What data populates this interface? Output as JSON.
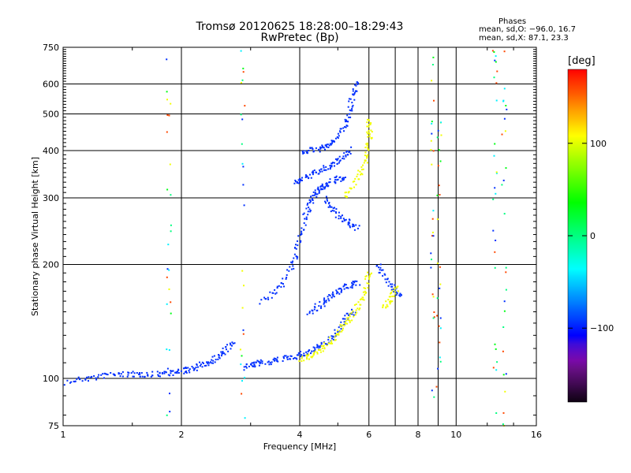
{
  "title_line1": "Tromsø 20120625 18:28:00–18:29:43",
  "title_line2": "RwPretec (Bp)",
  "phases_box": {
    "title": "Phases",
    "line_o": "mean, sd,O: −96.0, 16.7",
    "line_x": "mean, sd,X:  87.1, 23.3"
  },
  "colorbar": {
    "unit": "[deg]",
    "range": [
      -180,
      180
    ],
    "ticks": [
      "100",
      "0",
      "−100"
    ],
    "tick_values": [
      100,
      0,
      -100
    ]
  },
  "chart_data": {
    "type": "scatter",
    "xlabel": "Frequency [MHz]",
    "ylabel": "Stationary phase Virtual Height [km]",
    "xscale": "log",
    "yscale": "log",
    "xlim": [
      1,
      16
    ],
    "ylim": [
      75,
      750
    ],
    "xticks": [
      1,
      2,
      4,
      6,
      8,
      10,
      16
    ],
    "xtick_labels": [
      "1",
      "2",
      "4",
      "6",
      "8",
      "10",
      "16"
    ],
    "yticks": [
      75,
      100,
      200,
      300,
      400,
      500,
      600,
      750
    ],
    "ytick_labels": [
      "75",
      "100",
      "200",
      "300",
      "400",
      "500",
      "600",
      "750"
    ],
    "grid": true,
    "series": [
      {
        "color_value": -95,
        "traces": [
          [
            [
              1.02,
              98
            ],
            [
              1.1,
              100
            ],
            [
              1.2,
              101
            ],
            [
              1.3,
              103
            ],
            [
              1.4,
              103
            ],
            [
              1.5,
              103
            ],
            [
              1.6,
              103
            ],
            [
              1.7,
              103
            ],
            [
              1.8,
              104
            ],
            [
              1.9,
              104
            ],
            [
              2.0,
              105
            ],
            [
              2.1,
              106
            ],
            [
              2.2,
              108
            ],
            [
              2.3,
              110
            ],
            [
              2.4,
              113
            ],
            [
              2.5,
              116
            ],
            [
              2.6,
              120
            ],
            [
              2.7,
              126
            ]
          ],
          [
            [
              2.9,
              108
            ],
            [
              3.0,
              109
            ],
            [
              3.1,
              110
            ],
            [
              3.3,
              111
            ],
            [
              3.5,
              112
            ],
            [
              3.7,
              114
            ],
            [
              3.9,
              115
            ],
            [
              4.1,
              117
            ],
            [
              4.3,
              119
            ],
            [
              4.5,
              122
            ],
            [
              4.7,
              126
            ],
            [
              4.9,
              132
            ],
            [
              5.1,
              140
            ],
            [
              5.3,
              148
            ],
            [
              5.5,
              152
            ]
          ],
          [
            [
              3.2,
              160
            ],
            [
              3.4,
              168
            ],
            [
              3.6,
              180
            ],
            [
              3.8,
              198
            ],
            [
              3.9,
              215
            ],
            [
              4.0,
              240
            ],
            [
              4.1,
              265
            ],
            [
              4.2,
              285
            ],
            [
              4.3,
              300
            ],
            [
              4.4,
              310
            ],
            [
              4.5,
              318
            ],
            [
              4.6,
              325
            ],
            [
              4.8,
              332
            ],
            [
              5.0,
              338
            ],
            [
              5.2,
              342
            ]
          ],
          [
            [
              3.9,
              330
            ],
            [
              4.0,
              335
            ],
            [
              4.2,
              345
            ],
            [
              4.4,
              352
            ],
            [
              4.6,
              360
            ],
            [
              4.8,
              368
            ],
            [
              5.0,
              378
            ],
            [
              5.2,
              390
            ],
            [
              5.4,
              405
            ]
          ],
          [
            [
              4.0,
              400
            ],
            [
              4.2,
              402
            ],
            [
              4.4,
              405
            ],
            [
              4.6,
              410
            ],
            [
              4.8,
              420
            ],
            [
              5.0,
              440
            ],
            [
              5.2,
              470
            ],
            [
              5.3,
              500
            ],
            [
              5.4,
              540
            ],
            [
              5.5,
              580
            ],
            [
              5.55,
              615
            ]
          ],
          [
            [
              4.6,
              300
            ],
            [
              4.8,
              285
            ],
            [
              5.0,
              272
            ],
            [
              5.2,
              262
            ],
            [
              5.4,
              256
            ],
            [
              5.6,
              250
            ]
          ],
          [
            [
              4.2,
              150
            ],
            [
              4.4,
              155
            ],
            [
              4.6,
              160
            ],
            [
              4.8,
              165
            ],
            [
              5.0,
              170
            ],
            [
              5.2,
              175
            ],
            [
              5.4,
              178
            ],
            [
              5.6,
              180
            ]
          ],
          [
            [
              6.3,
              200
            ],
            [
              6.5,
              190
            ],
            [
              6.8,
              178
            ],
            [
              7.0,
              170
            ],
            [
              7.2,
              165
            ]
          ]
        ]
      },
      {
        "color_value": 105,
        "traces": [
          [
            [
              4.0,
              113
            ],
            [
              4.2,
              115
            ],
            [
              4.4,
              118
            ],
            [
              4.6,
              122
            ],
            [
              4.8,
              127
            ],
            [
              5.0,
              133
            ],
            [
              5.2,
              140
            ],
            [
              5.4,
              148
            ],
            [
              5.6,
              156
            ],
            [
              5.8,
              165
            ],
            [
              5.9,
              180
            ],
            [
              6.0,
              195
            ]
          ],
          [
            [
              5.2,
              300
            ],
            [
              5.4,
              320
            ],
            [
              5.6,
              345
            ],
            [
              5.8,
              370
            ],
            [
              5.9,
              400
            ],
            [
              6.0,
              430
            ],
            [
              6.0,
              460
            ],
            [
              5.95,
              490
            ]
          ],
          [
            [
              6.5,
              155
            ],
            [
              6.7,
              160
            ],
            [
              6.9,
              168
            ],
            [
              7.1,
              175
            ]
          ]
        ]
      }
    ]
  }
}
